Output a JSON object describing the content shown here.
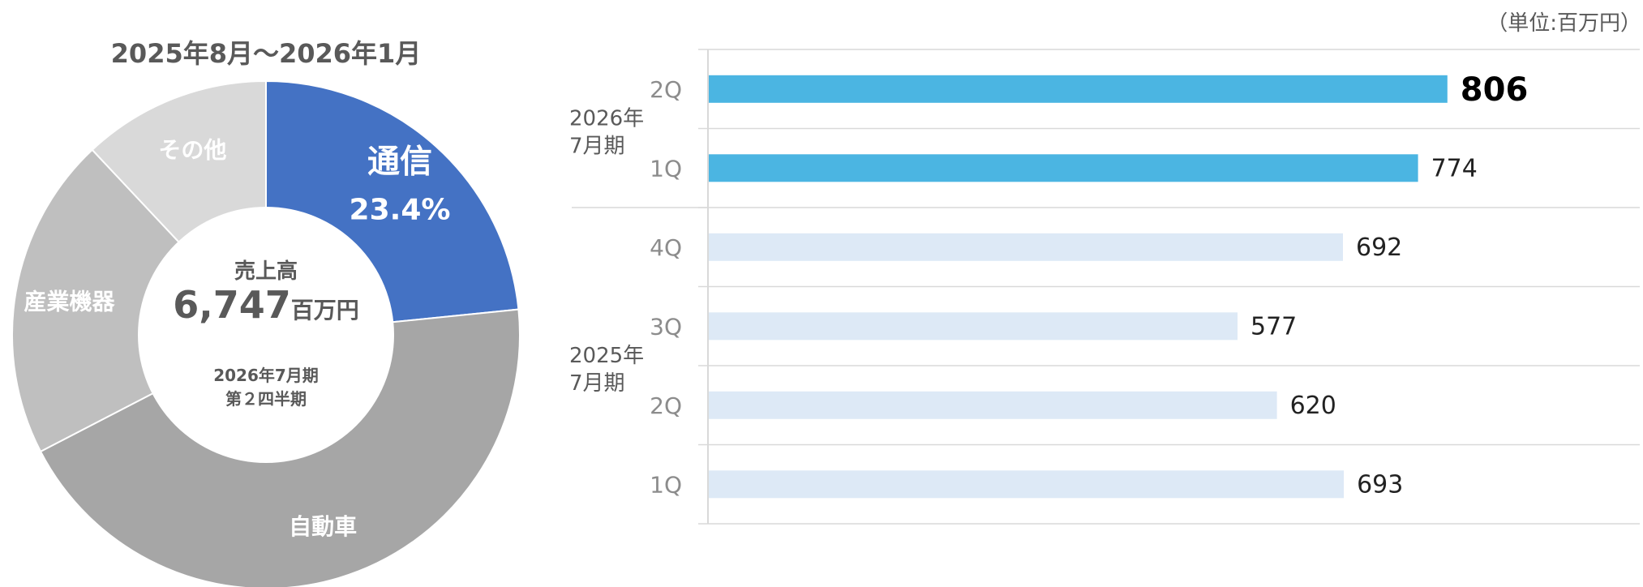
{
  "chart_data": [
    {
      "type": "pie",
      "title": "2025年8月～2026年1月",
      "center": {
        "label": "売上高",
        "value": "6,747",
        "unit": "百万円",
        "period_line1": "2026年7月期",
        "period_line2": "第２四半期"
      },
      "slices": [
        {
          "name": "通信",
          "value": 23.4,
          "value_label": "23.4%",
          "color": "#4472c4"
        },
        {
          "name": "自動車",
          "value": 44.0,
          "color": "#a6a6a6"
        },
        {
          "name": "産業機器",
          "value": 20.6,
          "color": "#bfbfbf"
        },
        {
          "name": "その他",
          "value": 12.0,
          "color": "#d9d9d9"
        }
      ]
    },
    {
      "type": "bar",
      "orientation": "horizontal",
      "unit_label": "（単位:百万円）",
      "xlim": [
        0,
        1000
      ],
      "groups": [
        {
          "label_line1": "2026年",
          "label_line2": "7月期",
          "categories": [
            "2Q",
            "1Q"
          ]
        },
        {
          "label_line1": "2025年",
          "label_line2": "7月期",
          "categories": [
            "4Q",
            "3Q",
            "2Q",
            "1Q"
          ]
        }
      ],
      "bars": [
        {
          "category": "2Q",
          "value": 806,
          "value_label": "806",
          "color": "#4bb5e2",
          "highlight": true
        },
        {
          "category": "1Q",
          "value": 774,
          "value_label": "774",
          "color": "#4bb5e2"
        },
        {
          "category": "4Q",
          "value": 692,
          "value_label": "692",
          "color": "#dde9f6"
        },
        {
          "category": "3Q",
          "value": 577,
          "value_label": "577",
          "color": "#dde9f6"
        },
        {
          "category": "2Q",
          "value": 620,
          "value_label": "620",
          "color": "#dde9f6"
        },
        {
          "category": "1Q",
          "value": 693,
          "value_label": "693",
          "color": "#dde9f6"
        }
      ]
    }
  ]
}
